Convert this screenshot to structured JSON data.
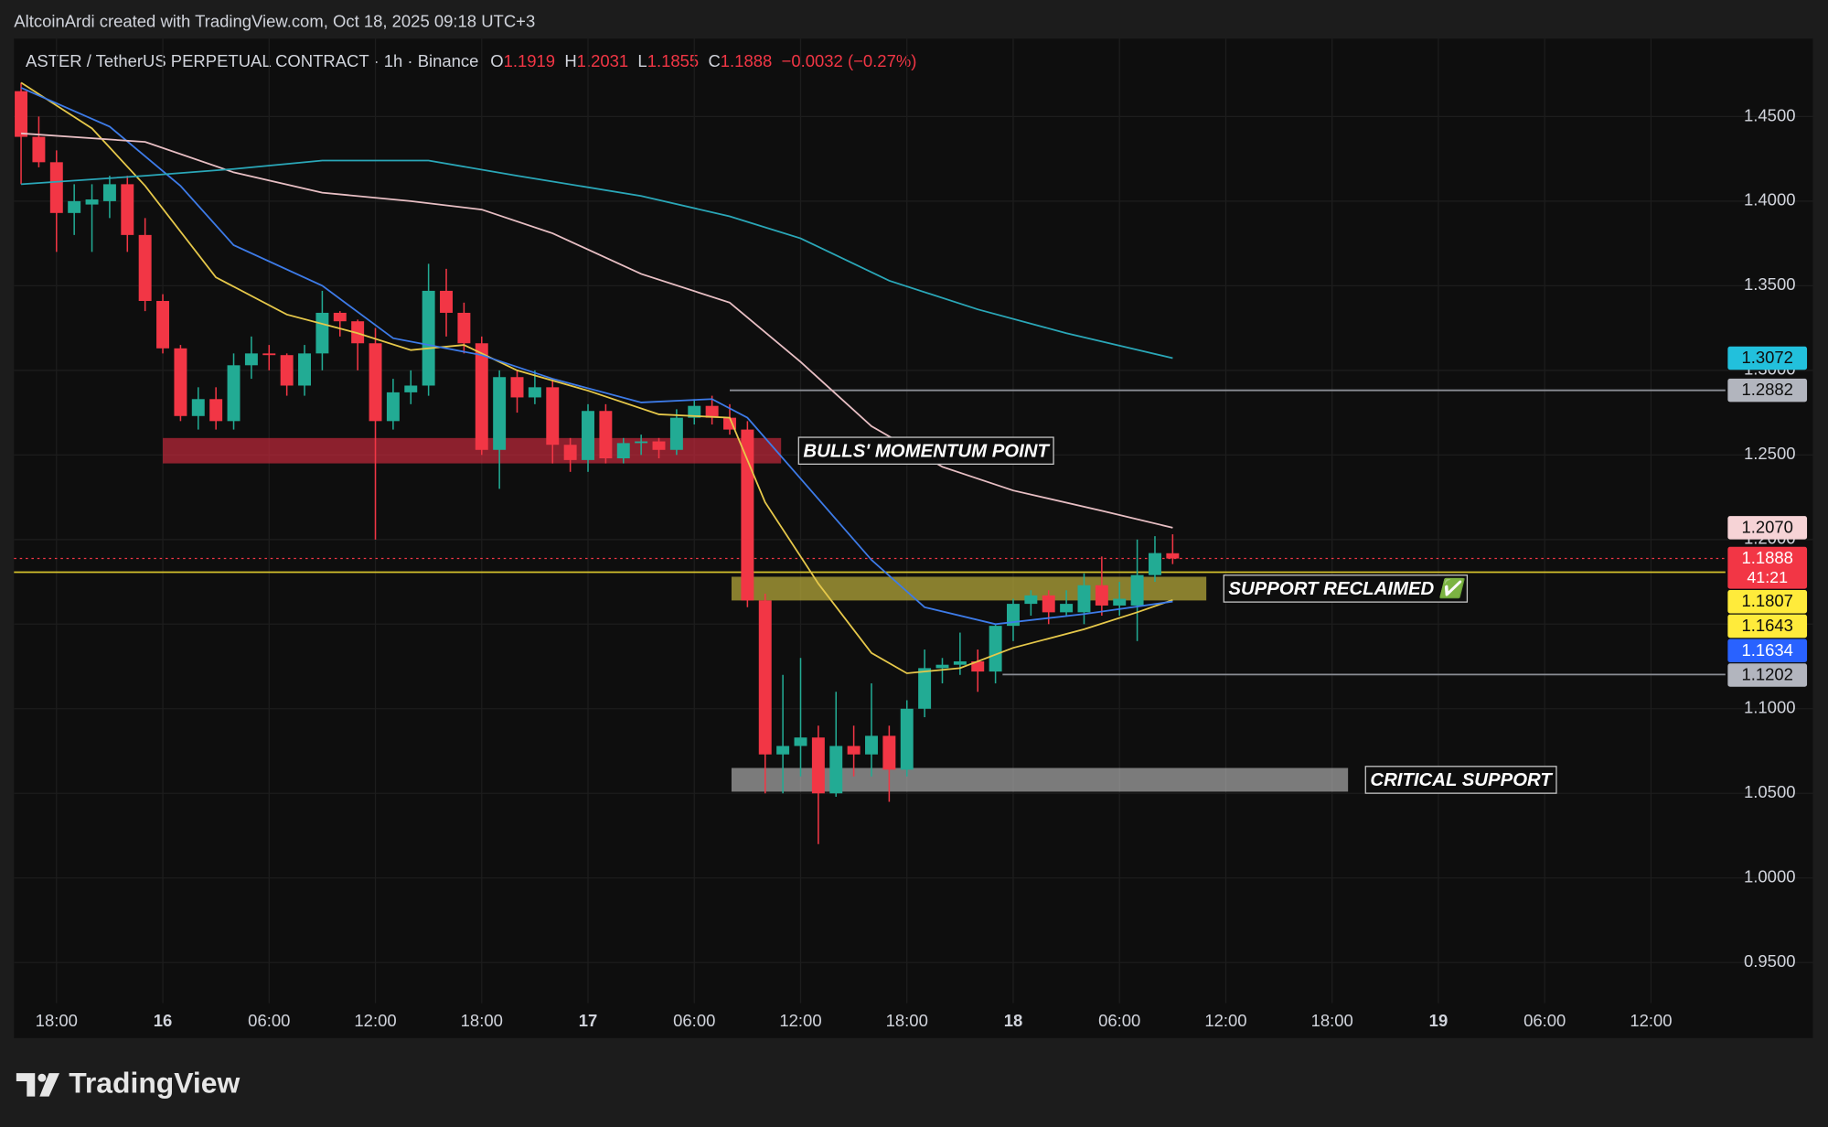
{
  "header": {
    "credit": "AltcoinArdi created with TradingView.com, Oct 18, 2025 09:18 UTC+3",
    "symbol": "ASTER / TetherUS PERPETUAL CONTRACT · 1h · Binance",
    "ohlc": [
      {
        "key": "O",
        "value": 1.1919
      },
      {
        "key": "H",
        "value": 1.2031
      },
      {
        "key": "L",
        "value": 1.1855
      },
      {
        "key": "C",
        "value": 1.1888
      }
    ],
    "change": {
      "value": -0.0032,
      "label": "−0.0032"
    },
    "change_pct": {
      "value": -0.27,
      "label": "(−0.27%)"
    }
  },
  "chart_data": {
    "type": "candlestick",
    "up_color": "#22ab94",
    "down_color": "#f23645",
    "grid": true,
    "x": [
      0,
      1,
      2,
      3,
      4,
      5,
      6,
      7,
      8,
      9,
      10,
      11,
      12,
      13,
      14,
      15,
      16,
      17,
      18,
      19,
      20,
      21,
      22,
      23,
      24,
      25,
      26,
      27,
      28,
      29,
      30,
      31,
      32,
      33,
      34,
      35,
      36,
      37,
      38,
      39,
      40,
      41,
      42,
      43,
      44,
      45,
      46,
      47,
      48,
      49,
      50,
      51,
      52,
      53,
      54,
      55,
      56,
      57,
      58,
      59,
      60,
      61,
      62,
      63,
      64,
      65
    ],
    "open": [
      1.465,
      1.438,
      1.423,
      1.393,
      1.398,
      1.4,
      1.41,
      1.38,
      1.341,
      1.313,
      1.273,
      1.283,
      1.27,
      1.303,
      1.31,
      1.309,
      1.291,
      1.31,
      1.334,
      1.329,
      1.316,
      1.27,
      1.287,
      1.291,
      1.347,
      1.334,
      1.316,
      1.253,
      1.296,
      1.284,
      1.29,
      1.256,
      1.247,
      1.276,
      1.248,
      1.257,
      1.258,
      1.253,
      1.272,
      1.279,
      1.272,
      1.265,
      1.164,
      1.073,
      1.078,
      1.083,
      1.05,
      1.078,
      1.073,
      1.084,
      1.064,
      1.1,
      1.124,
      1.126,
      1.128,
      1.122,
      1.149,
      1.162,
      1.167,
      1.157,
      1.157,
      1.173,
      1.161,
      1.161,
      1.179,
      1.1919
    ],
    "high": [
      1.47,
      1.45,
      1.43,
      1.41,
      1.41,
      1.415,
      1.415,
      1.39,
      1.345,
      1.315,
      1.29,
      1.29,
      1.31,
      1.32,
      1.315,
      1.31,
      1.315,
      1.347,
      1.335,
      1.33,
      1.325,
      1.295,
      1.3,
      1.363,
      1.36,
      1.34,
      1.32,
      1.3,
      1.3,
      1.3,
      1.295,
      1.26,
      1.28,
      1.28,
      1.26,
      1.262,
      1.26,
      1.277,
      1.283,
      1.285,
      1.28,
      1.27,
      1.168,
      1.12,
      1.13,
      1.09,
      1.11,
      1.09,
      1.115,
      1.09,
      1.105,
      1.135,
      1.13,
      1.145,
      1.135,
      1.15,
      1.165,
      1.17,
      1.17,
      1.17,
      1.18,
      1.19,
      1.175,
      1.2,
      1.202,
      1.2031
    ],
    "low": [
      1.41,
      1.42,
      1.37,
      1.38,
      1.37,
      1.39,
      1.37,
      1.335,
      1.31,
      1.27,
      1.265,
      1.265,
      1.265,
      1.295,
      1.3,
      1.285,
      1.285,
      1.3,
      1.32,
      1.3,
      1.2,
      1.265,
      1.28,
      1.285,
      1.32,
      1.31,
      1.25,
      1.23,
      1.275,
      1.28,
      1.245,
      1.24,
      1.24,
      1.245,
      1.245,
      1.25,
      1.248,
      1.25,
      1.268,
      1.268,
      1.262,
      1.16,
      1.05,
      1.05,
      1.06,
      1.02,
      1.048,
      1.06,
      1.06,
      1.045,
      1.06,
      1.095,
      1.115,
      1.12,
      1.11,
      1.115,
      1.14,
      1.155,
      1.15,
      1.155,
      1.15,
      1.155,
      1.155,
      1.14,
      1.175,
      1.1855
    ],
    "close": [
      1.438,
      1.423,
      1.393,
      1.4,
      1.401,
      1.41,
      1.38,
      1.341,
      1.313,
      1.273,
      1.283,
      1.27,
      1.303,
      1.31,
      1.309,
      1.291,
      1.31,
      1.334,
      1.329,
      1.316,
      1.27,
      1.287,
      1.291,
      1.347,
      1.334,
      1.316,
      1.253,
      1.296,
      1.284,
      1.29,
      1.256,
      1.247,
      1.276,
      1.248,
      1.257,
      1.258,
      1.253,
      1.272,
      1.279,
      1.272,
      1.265,
      1.164,
      1.073,
      1.078,
      1.083,
      1.05,
      1.078,
      1.073,
      1.084,
      1.064,
      1.1,
      1.124,
      1.126,
      1.128,
      1.122,
      1.149,
      1.162,
      1.167,
      1.157,
      1.162,
      1.173,
      1.161,
      1.165,
      1.179,
      1.192,
      1.1888
    ],
    "ma_lines": [
      {
        "color": "#e6c84a",
        "x": [
          0,
          4,
          7,
          11,
          15,
          19,
          22,
          25,
          28,
          32,
          36,
          40,
          42,
          45,
          48,
          50,
          53,
          56,
          60,
          63,
          65
        ],
        "values": [
          1.47,
          1.443,
          1.409,
          1.355,
          1.333,
          1.322,
          1.312,
          1.315,
          1.3,
          1.288,
          1.274,
          1.272,
          1.222,
          1.174,
          1.133,
          1.121,
          1.124,
          1.136,
          1.147,
          1.157,
          1.1643
        ]
      },
      {
        "color": "#3d7be8",
        "x": [
          0,
          5,
          9,
          12,
          17,
          21,
          26,
          30,
          35,
          39,
          41,
          44,
          48,
          51,
          55,
          60,
          65
        ],
        "values": [
          1.467,
          1.444,
          1.409,
          1.374,
          1.35,
          1.319,
          1.309,
          1.295,
          1.281,
          1.283,
          1.272,
          1.236,
          1.188,
          1.16,
          1.15,
          1.156,
          1.1634
        ]
      },
      {
        "color": "#e8bfc4",
        "x": [
          0,
          7,
          12,
          17,
          22,
          26,
          30,
          35,
          40,
          44,
          48,
          52,
          56,
          61,
          65
        ],
        "values": [
          1.44,
          1.435,
          1.417,
          1.405,
          1.4,
          1.395,
          1.381,
          1.357,
          1.34,
          1.305,
          1.267,
          1.243,
          1.229,
          1.217,
          1.207
        ]
      },
      {
        "color": "#2aa7b8",
        "x": [
          0,
          7,
          12,
          17,
          23,
          28,
          35,
          40,
          44,
          49,
          54,
          59,
          65
        ],
        "values": [
          1.41,
          1.415,
          1.419,
          1.424,
          1.424,
          1.415,
          1.403,
          1.391,
          1.378,
          1.353,
          1.336,
          1.322,
          1.3072
        ]
      }
    ],
    "zones": [
      {
        "label": "BULLS' MOMENTUM POINT",
        "low": 1.245,
        "high": 1.26,
        "xrange": [
          8,
          42.9
        ],
        "color": "rgba(190,40,58,0.72)"
      },
      {
        "label": "SUPPORT RECLAIMED ✅",
        "low": 1.164,
        "high": 1.178,
        "xrange": [
          40.1,
          66.9
        ],
        "color": "rgba(190,175,60,0.7)"
      },
      {
        "label": "CRITICAL SUPPORT",
        "low": 1.051,
        "high": 1.065,
        "xrange": [
          40.1,
          74.9
        ],
        "color": "rgba(190,190,190,0.62)"
      }
    ],
    "hlines": [
      {
        "value": 1.2882,
        "from": 40,
        "color": "#8a8d94",
        "dash": false
      },
      {
        "value": 1.1807,
        "from": -0.4,
        "color": "#d4c12c",
        "dash": false
      },
      {
        "value": 1.1202,
        "from": 55.4,
        "color": "#8a8d94",
        "dash": false
      },
      {
        "value": 1.1888,
        "from": -0.4,
        "color": "#f23645",
        "dash": true
      }
    ],
    "price_tags": [
      {
        "value": 1.3072,
        "label": "1.3072",
        "bg": "#22c0dc",
        "fg": "#0e0e0e"
      },
      {
        "value": 1.2882,
        "label": "1.2882",
        "bg": "#b2b5be",
        "fg": "#0e0e0e"
      },
      {
        "value": 1.207,
        "label": "1.2070",
        "bg": "#f6d3d6",
        "fg": "#0e0e0e"
      },
      {
        "value": 1.1888,
        "label": "1.1888",
        "countdown": "41:21",
        "bg": "#f23645",
        "fg": "#ffffff"
      },
      {
        "value": 1.1807,
        "label": "1.1807",
        "bg": "#ffeb3b",
        "fg": "#0e0e0e"
      },
      {
        "value": 1.1643,
        "label": "1.1643",
        "bg": "#ffeb3b",
        "fg": "#0e0e0e"
      },
      {
        "value": 1.1634,
        "label": "1.1634",
        "bg": "#2962ff",
        "fg": "#ffffff"
      },
      {
        "value": 1.1202,
        "label": "1.1202",
        "bg": "#b2b5be",
        "fg": "#0e0e0e"
      }
    ],
    "xlim": [
      -0.4,
      96.2
    ],
    "ylim": [
      0.926,
      1.496
    ],
    "xticks": [
      {
        "value": 2,
        "label": "18:00"
      },
      {
        "value": 8,
        "label": "16"
      },
      {
        "value": 14,
        "label": "06:00"
      },
      {
        "value": 20,
        "label": "12:00"
      },
      {
        "value": 26,
        "label": "18:00"
      },
      {
        "value": 32,
        "label": "17"
      },
      {
        "value": 38,
        "label": "06:00"
      },
      {
        "value": 44,
        "label": "12:00"
      },
      {
        "value": 50,
        "label": "18:00"
      },
      {
        "value": 56,
        "label": "18"
      },
      {
        "value": 62,
        "label": "06:00"
      },
      {
        "value": 68,
        "label": "12:00"
      },
      {
        "value": 74,
        "label": "18:00"
      },
      {
        "value": 80,
        "label": "19"
      },
      {
        "value": 86,
        "label": "06:00"
      },
      {
        "value": 92,
        "label": "12:00"
      }
    ],
    "yticks": [
      {
        "value": 1.45,
        "label": "1.4500"
      },
      {
        "value": 1.4,
        "label": "1.4000"
      },
      {
        "value": 1.35,
        "label": "1.3500"
      },
      {
        "value": 1.3,
        "label": "1.3000"
      },
      {
        "value": 1.25,
        "label": "1.2500"
      },
      {
        "value": 1.2,
        "label": "1.2000"
      },
      {
        "value": 1.15,
        "label": "1.1500"
      },
      {
        "value": 1.1,
        "label": "1.1000"
      },
      {
        "value": 1.05,
        "label": "1.0500"
      },
      {
        "value": 1.0,
        "label": "1.0000"
      },
      {
        "value": 0.95,
        "label": "0.9500"
      }
    ]
  },
  "footer": {
    "brand": "TradingView"
  }
}
